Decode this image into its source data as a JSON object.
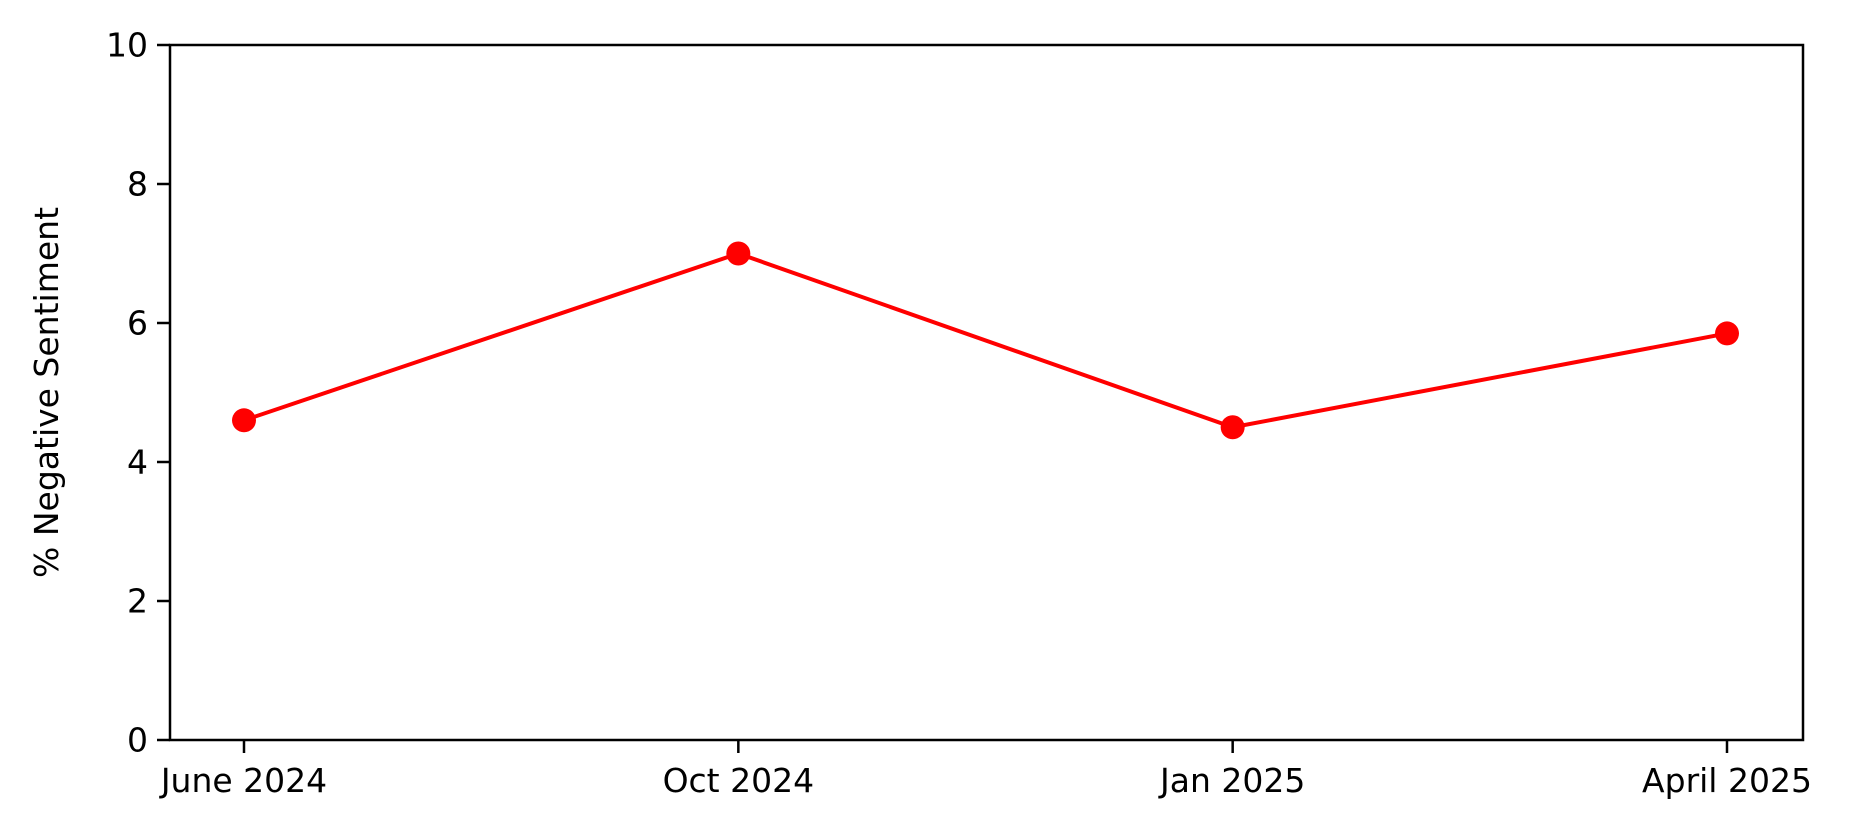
{
  "chart_data": {
    "type": "line",
    "title": "",
    "xlabel": "",
    "ylabel": "% Negative Sentiment",
    "categories": [
      "June 2024",
      "Oct 2024",
      "Jan 2025",
      "April 2025"
    ],
    "series": [
      {
        "values": [
          4.6,
          7.0,
          4.5,
          5.85
        ],
        "color": "#ff0000",
        "marker": "circle"
      }
    ],
    "ylim": [
      0,
      10
    ],
    "yticks": [
      0,
      2,
      4,
      6,
      8,
      10
    ],
    "grid": false,
    "legend": "none"
  }
}
